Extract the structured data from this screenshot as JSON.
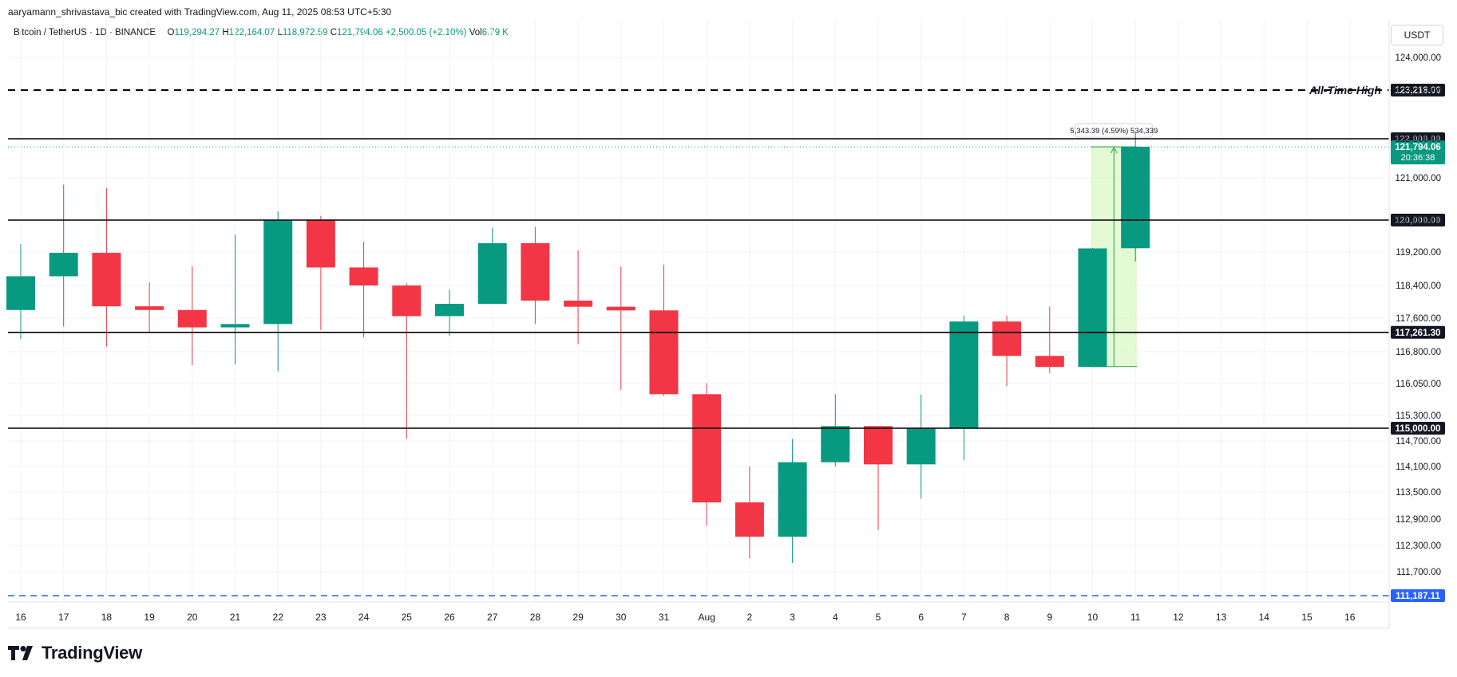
{
  "header": {
    "meta": "aaryamann_shrivastava_bic created with TradingView.com, Aug 11, 2025 08:53 UTC+5:30",
    "symbol": "Bitcoin / TetherUS · 1D · BINANCE",
    "o_label": "O",
    "o_value": "119,294.27",
    "h_label": "H",
    "h_value": "122,164.07",
    "l_label": "L",
    "l_value": "118,972.59",
    "c_label": "C",
    "c_value": "121,794.06",
    "change": "+2,500.05 (+2.10%)",
    "vol_label": "Vol",
    "vol_value": "6.79 K",
    "currency": "USDT"
  },
  "logo": {
    "text": "TradingView",
    "icon": "tradingview-logo-icon"
  },
  "colors": {
    "up": "#089981",
    "down": "#f23645",
    "grid": "#f0f3fa",
    "level_line": "#000000",
    "support_dashed": "#2962ff",
    "price_label": "#089981",
    "range_fill": "#ccf5b0",
    "range_line": "#4caf50"
  },
  "chart_data": {
    "type": "candlestick",
    "title": "Bitcoin / TetherUS · 1D · BINANCE",
    "x": [
      "16",
      "17",
      "18",
      "19",
      "20",
      "21",
      "22",
      "23",
      "24",
      "25",
      "26",
      "27",
      "28",
      "29",
      "30",
      "31",
      "Aug",
      "2",
      "3",
      "4",
      "5",
      "6",
      "7",
      "8",
      "9",
      "10",
      "11"
    ],
    "x_ticks": [
      "16",
      "17",
      "18",
      "19",
      "20",
      "21",
      "22",
      "23",
      "24",
      "25",
      "26",
      "27",
      "28",
      "29",
      "30",
      "31",
      "Aug",
      "2",
      "3",
      "4",
      "5",
      "6",
      "7",
      "8",
      "9",
      "10",
      "11",
      "12",
      "13",
      "14",
      "15",
      "16"
    ],
    "candles": [
      {
        "o": 117800,
        "h": 119400,
        "l": 117100,
        "c": 118620
      },
      {
        "o": 118620,
        "h": 120840,
        "l": 117400,
        "c": 119180
      },
      {
        "o": 119180,
        "h": 120760,
        "l": 116920,
        "c": 117890
      },
      {
        "o": 117890,
        "h": 118480,
        "l": 117260,
        "c": 117800
      },
      {
        "o": 117800,
        "h": 118860,
        "l": 116480,
        "c": 117380
      },
      {
        "o": 117380,
        "h": 119640,
        "l": 116500,
        "c": 117460
      },
      {
        "o": 117460,
        "h": 120210,
        "l": 116340,
        "c": 120000
      },
      {
        "o": 120000,
        "h": 120100,
        "l": 117320,
        "c": 118830
      },
      {
        "o": 118830,
        "h": 119460,
        "l": 117140,
        "c": 118400
      },
      {
        "o": 118400,
        "h": 118450,
        "l": 114750,
        "c": 117650
      },
      {
        "o": 117650,
        "h": 118300,
        "l": 117180,
        "c": 117950
      },
      {
        "o": 117950,
        "h": 119810,
        "l": 117950,
        "c": 119420
      },
      {
        "o": 119420,
        "h": 119830,
        "l": 117460,
        "c": 118030
      },
      {
        "o": 118030,
        "h": 119240,
        "l": 116980,
        "c": 117880
      },
      {
        "o": 117880,
        "h": 118850,
        "l": 115900,
        "c": 117790
      },
      {
        "o": 117790,
        "h": 118900,
        "l": 115760,
        "c": 115800
      },
      {
        "o": 115800,
        "h": 116060,
        "l": 112750,
        "c": 113270
      },
      {
        "o": 113270,
        "h": 114100,
        "l": 112000,
        "c": 112500
      },
      {
        "o": 112500,
        "h": 114750,
        "l": 111900,
        "c": 114200
      },
      {
        "o": 114200,
        "h": 115800,
        "l": 114100,
        "c": 115050
      },
      {
        "o": 115050,
        "h": 115000,
        "l": 112650,
        "c": 114150
      },
      {
        "o": 114150,
        "h": 115790,
        "l": 113350,
        "c": 115000
      },
      {
        "o": 115000,
        "h": 117660,
        "l": 114250,
        "c": 117520
      },
      {
        "o": 117520,
        "h": 117660,
        "l": 115990,
        "c": 116700
      },
      {
        "o": 116700,
        "h": 117880,
        "l": 116300,
        "c": 116440
      },
      {
        "o": 116440,
        "h": 119300,
        "l": 116440,
        "c": 119290
      },
      {
        "o": 119294.27,
        "h": 122164.07,
        "l": 118972.59,
        "c": 121794.06
      }
    ],
    "y_ticks": [
      "124,000.00",
      "123,200.00",
      "122,000.00",
      "121,000.00",
      "120,000.00",
      "119,200.00",
      "118,400.00",
      "117,600.00",
      "116,800.00",
      "116,050.00",
      "115,300.00",
      "114,700.00",
      "114,100.00",
      "113,500.00",
      "112,900.00",
      "112,300.00",
      "111,700.00"
    ],
    "levels": [
      {
        "value": 123218,
        "label": "123,218.00",
        "style": "dashed",
        "annotation": "All-Time High"
      },
      {
        "value": 122000,
        "label": "122,000.00",
        "style": "solid"
      },
      {
        "value": 120000,
        "label": "120,000.00",
        "style": "solid"
      },
      {
        "value": 117261.3,
        "label": "117,261.30",
        "style": "solid"
      },
      {
        "value": 115000,
        "label": "115,000.00",
        "style": "solid"
      },
      {
        "value": 111187.11,
        "label": "111,187.11",
        "style": "dashed-blue"
      }
    ],
    "last_price": {
      "value": 121794.06,
      "label": "121,794.06",
      "countdown": "20:36:38"
    },
    "range_measure": {
      "from_index": 25,
      "to_index": 26,
      "from_value": 116450,
      "to_value": 121794,
      "label": "5,343.39 (4.59%) 534,339"
    }
  }
}
